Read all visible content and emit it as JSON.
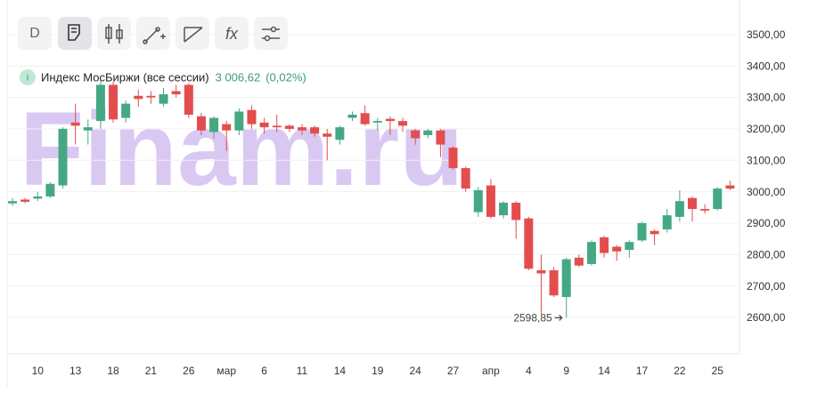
{
  "toolbar": {
    "timeframe": "D"
  },
  "watermark": "Finam.ru",
  "chart_data": {
    "type": "candlestick",
    "title": "Индекс МосБиржи (все сессии)",
    "legend_icon": "I",
    "last_value": "3 006,62",
    "change": "(0,02%)",
    "categories": [
      null,
      null,
      "10",
      null,
      null,
      "13",
      null,
      null,
      "18",
      null,
      null,
      "21",
      null,
      null,
      "26",
      null,
      null,
      "мар",
      null,
      null,
      "6",
      null,
      null,
      "11",
      null,
      null,
      "14",
      null,
      null,
      "19",
      null,
      null,
      "24",
      null,
      null,
      "27",
      null,
      null,
      "апр",
      null,
      null,
      "4",
      null,
      null,
      "9",
      null,
      null,
      "14",
      null,
      null,
      "17",
      null,
      null,
      "22",
      null,
      null,
      "25",
      null
    ],
    "series": [
      {
        "name": "Индекс МосБиржи",
        "up_color": "#45a884",
        "down_color": "#e34d4d",
        "open": [
          2963,
          2975,
          2978,
          2985,
          3020,
          3220,
          3195,
          3225,
          3340,
          3235,
          3305,
          3305,
          3280,
          3320,
          3340,
          3240,
          3190,
          3215,
          3195,
          3260,
          3220,
          3210,
          3210,
          3205,
          3205,
          3185,
          3165,
          3235,
          3250,
          3220,
          3232,
          3225,
          3195,
          3180,
          3195,
          3140,
          3075,
          2935,
          3020,
          2925,
          2965,
          2915,
          2750,
          2750,
          2665,
          2790,
          2770,
          2855,
          2825,
          2815,
          2845,
          2875,
          2880,
          2920,
          2980,
          2945,
          2945,
          3020
        ],
        "high": [
          2980,
          2980,
          3000,
          3030,
          3205,
          3280,
          3230,
          3360,
          3350,
          3290,
          3325,
          3320,
          3330,
          3340,
          3345,
          3250,
          3240,
          3225,
          3265,
          3275,
          3235,
          3245,
          3215,
          3215,
          3210,
          3200,
          3210,
          3255,
          3275,
          3235,
          3240,
          3235,
          3200,
          3200,
          3200,
          3145,
          3080,
          3015,
          3040,
          2970,
          2970,
          2920,
          2800,
          2760,
          2790,
          2800,
          2845,
          2860,
          2830,
          2845,
          2905,
          2880,
          2945,
          3005,
          2985,
          2960,
          3015,
          3035
        ],
        "low": [
          2955,
          2963,
          2970,
          2980,
          3010,
          3150,
          3150,
          3200,
          3220,
          3220,
          3270,
          3280,
          3270,
          3300,
          3235,
          3180,
          3170,
          3130,
          3180,
          3200,
          3185,
          3190,
          3190,
          3180,
          3175,
          3100,
          3150,
          3225,
          3210,
          3195,
          3180,
          3190,
          3150,
          3170,
          3110,
          3070,
          3000,
          2920,
          2915,
          2915,
          2850,
          2750,
          2610,
          2665,
          2598.85,
          2760,
          2765,
          2790,
          2780,
          2790,
          2840,
          2830,
          2870,
          2905,
          2905,
          2930,
          2940,
          3005
        ],
        "close": [
          2970,
          2968,
          2985,
          3025,
          3200,
          3210,
          3205,
          3340,
          3230,
          3280,
          3295,
          3300,
          3310,
          3310,
          3245,
          3195,
          3235,
          3195,
          3255,
          3215,
          3205,
          3205,
          3200,
          3195,
          3185,
          3175,
          3205,
          3245,
          3215,
          3225,
          3225,
          3210,
          3170,
          3195,
          3150,
          3075,
          3010,
          3005,
          2920,
          2965,
          2910,
          2755,
          2740,
          2670,
          2785,
          2765,
          2840,
          2805,
          2810,
          2840,
          2900,
          2865,
          2925,
          2970,
          2945,
          2940,
          3010,
          3010
        ]
      }
    ],
    "annotation": {
      "value": 2598.85,
      "label": "2598,85"
    },
    "ylim": [
      2484,
      3610
    ],
    "yticks": [
      {
        "value": 2600,
        "label": "2600,00"
      },
      {
        "value": 2700,
        "label": "2700,00"
      },
      {
        "value": 2800,
        "label": "2800,00"
      },
      {
        "value": 2900,
        "label": "2900,00"
      },
      {
        "value": 3000,
        "label": "3000,00"
      },
      {
        "value": 3100,
        "label": "3100,00"
      },
      {
        "value": 3200,
        "label": "3200,00"
      },
      {
        "value": 3300,
        "label": "3300,00"
      },
      {
        "value": 3400,
        "label": "3400,00"
      },
      {
        "value": 3500,
        "label": "3500,00"
      }
    ],
    "grid": true
  }
}
